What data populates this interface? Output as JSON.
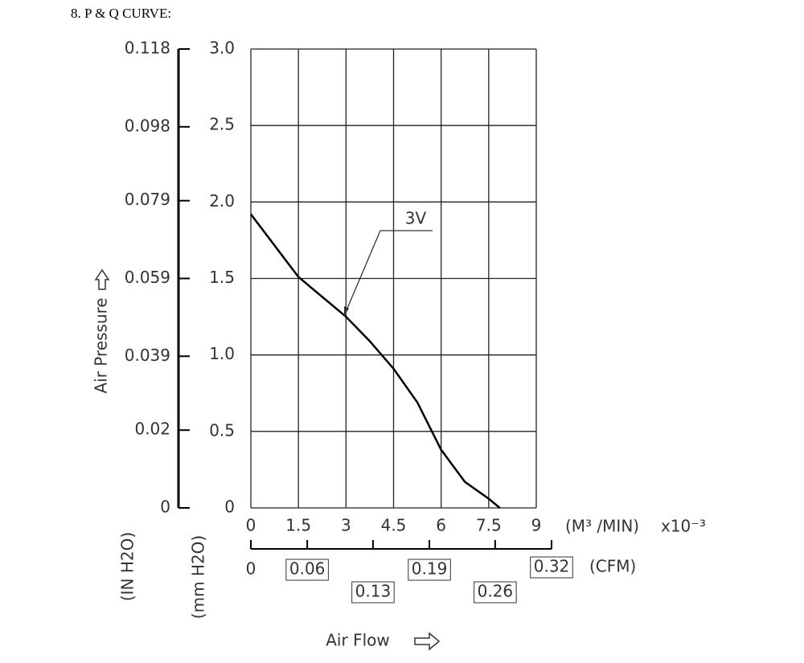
{
  "chart_data": {
    "type": "line",
    "title": "8. P & Q CURVE:",
    "y_label": "Air Pressure",
    "x_label": "Air Flow",
    "y_unit": "(mm H2O)",
    "y2_unit": "(IN H2O)",
    "x_unit": "(M³ /MIN)",
    "x_unit_scale": "x10⁻³",
    "x2_unit": "(CFM)",
    "xlim": [
      0,
      9
    ],
    "xticks": [
      0,
      1.5,
      3,
      4.5,
      6,
      7.5,
      9
    ],
    "ylim": [
      0,
      3
    ],
    "yticks": [
      0,
      0.5,
      {
        "value": 1,
        "label": "1.0"
      },
      1.5,
      {
        "value": 2,
        "label": "2.0"
      },
      2.5,
      {
        "value": 3,
        "label": "3.0"
      }
    ],
    "y2lim": [
      0,
      0.118
    ],
    "y2ticks": [
      0,
      0.02,
      0.039,
      0.059,
      0.079,
      0.098,
      0.118
    ],
    "x2lim": [
      0,
      0.32
    ],
    "x2ticks": [
      0,
      0.06,
      0.13,
      0.19,
      0.26,
      0.32
    ],
    "grid": true,
    "series": [
      {
        "name": "3V",
        "color": "#000000",
        "x": [
          0,
          1.5,
          3,
          3.75,
          4.5,
          5.25,
          6,
          6.75,
          7.5,
          7.85
        ],
        "values": [
          1.92,
          1.51,
          1.25,
          1.09,
          0.91,
          0.69,
          0.38,
          0.17,
          0.06,
          0
        ]
      }
    ]
  }
}
